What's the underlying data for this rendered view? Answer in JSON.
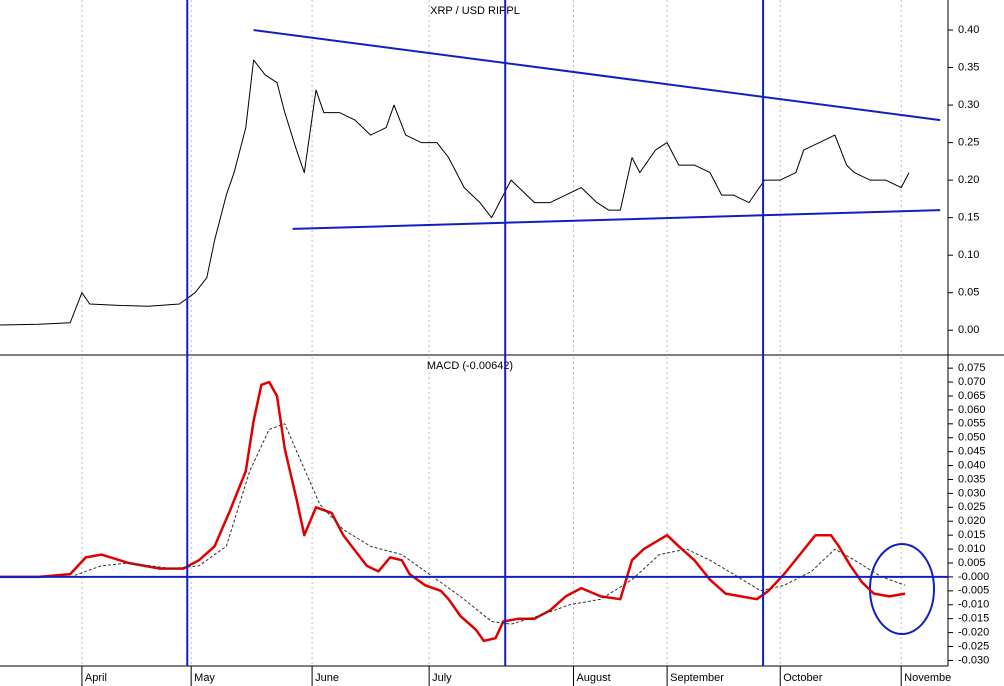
{
  "chart_data": [
    {
      "type": "line",
      "title": "XRP / USD RIPPL",
      "color": "#000000",
      "xlim": [
        0,
        243
      ],
      "ylim": [
        -0.033,
        0.44
      ],
      "yticks": [
        {
          "value": 0.4,
          "label": "0.40"
        },
        0.35,
        {
          "value": 0.3,
          "label": "0.30"
        },
        0.25,
        {
          "value": 0.2,
          "label": "0.20"
        },
        0.15,
        {
          "value": 0.1,
          "label": "0.10"
        },
        0.05,
        {
          "value": 0,
          "label": "0.00"
        }
      ],
      "series": [
        {
          "color": "#000000",
          "x": [
            0,
            10,
            18,
            21,
            23,
            31,
            38,
            46,
            50,
            53,
            55,
            58,
            60,
            63,
            65,
            68,
            71,
            73,
            76,
            78,
            81,
            83,
            87,
            91,
            95,
            99,
            101,
            104,
            108,
            112,
            115,
            119,
            123,
            126,
            128,
            131,
            133,
            137,
            141,
            145,
            149,
            153,
            156,
            159,
            162,
            164,
            168,
            171,
            174,
            178,
            182,
            185,
            188,
            192,
            196,
            200,
            204,
            206,
            210,
            214,
            217,
            219,
            223,
            227,
            231,
            233
          ],
          "values": [
            0.007,
            0.008,
            0.01,
            0.05,
            0.035,
            0.033,
            0.032,
            0.035,
            0.05,
            0.07,
            0.12,
            0.18,
            0.21,
            0.27,
            0.36,
            0.34,
            0.33,
            0.29,
            0.24,
            0.21,
            0.32,
            0.29,
            0.29,
            0.28,
            0.26,
            0.27,
            0.3,
            0.26,
            0.25,
            0.25,
            0.23,
            0.19,
            0.17,
            0.15,
            0.17,
            0.2,
            0.19,
            0.17,
            0.17,
            0.18,
            0.19,
            0.17,
            0.16,
            0.16,
            0.23,
            0.21,
            0.24,
            0.25,
            0.22,
            0.22,
            0.21,
            0.18,
            0.18,
            0.17,
            0.2,
            0.2,
            0.21,
            0.24,
            0.25,
            0.26,
            0.22,
            0.21,
            0.2,
            0.2,
            0.19,
            0.21
          ]
        }
      ],
      "trendlines": [
        {
          "color": "#1020c0",
          "x": [
            65,
            241
          ],
          "y": [
            0.4,
            0.28
          ]
        },
        {
          "color": "#1020c0",
          "x": [
            75,
            241
          ],
          "y": [
            0.135,
            0.16
          ]
        }
      ],
      "vlines": [
        48,
        129.5,
        195.6
      ],
      "vline_color": "#1020c0"
    },
    {
      "type": "line",
      "title": "MACD (-0.00642)",
      "xlim": [
        0,
        243
      ],
      "ylim": [
        -0.032,
        0.079
      ],
      "grid": true,
      "xticks": [
        {
          "value": 21,
          "label": "April"
        },
        {
          "value": 49,
          "label": "May"
        },
        {
          "value": 80,
          "label": "June"
        },
        {
          "value": 110,
          "label": "July"
        },
        {
          "value": 147,
          "label": "August"
        },
        {
          "value": 171,
          "label": "September"
        },
        {
          "value": 200,
          "label": "October"
        },
        {
          "value": 231,
          "label": "Novembe"
        }
      ],
      "yticks": [
        0.075,
        {
          "value": 0.07,
          "label": "0.070"
        },
        0.065,
        {
          "value": 0.06,
          "label": "0.060"
        },
        0.055,
        {
          "value": 0.05,
          "label": "0.050"
        },
        0.045,
        {
          "value": 0.04,
          "label": "0.040"
        },
        0.035,
        {
          "value": 0.03,
          "label": "0.030"
        },
        0.025,
        {
          "value": 0.02,
          "label": "0.020"
        },
        0.015,
        {
          "value": 0.01,
          "label": "0.010"
        },
        0.005,
        {
          "value": 0,
          "label": "-0.000"
        },
        -0.005,
        {
          "value": -0.01,
          "label": "-0.010"
        },
        -0.015,
        {
          "value": -0.02,
          "label": "-0.020"
        },
        -0.025,
        {
          "value": -0.03,
          "label": "-0.030"
        }
      ],
      "hline": 0,
      "hline_color": "#1020c0",
      "series": [
        {
          "color": "#e00000",
          "width": 2.5,
          "x": [
            0,
            10,
            18,
            22,
            26,
            33,
            41,
            47,
            51,
            55,
            59,
            63,
            65,
            67,
            69,
            71,
            73,
            76,
            78,
            81,
            85,
            88,
            94,
            97,
            100,
            103,
            105,
            109,
            113,
            115,
            118,
            122,
            124,
            127,
            129,
            133,
            137,
            141,
            145,
            149,
            154,
            159,
            162,
            165,
            171,
            174,
            178,
            182,
            186,
            190,
            194,
            197,
            201,
            205,
            209,
            213,
            215,
            218,
            221,
            224,
            228,
            232
          ],
          "values": [
            0,
            0,
            0.001,
            0.007,
            0.008,
            0.005,
            0.003,
            0.003,
            0.006,
            0.011,
            0.024,
            0.038,
            0.056,
            0.069,
            0.07,
            0.065,
            0.046,
            0.028,
            0.015,
            0.025,
            0.023,
            0.015,
            0.004,
            0.002,
            0.007,
            0.006,
            0.001,
            -0.003,
            -0.005,
            -0.008,
            -0.014,
            -0.019,
            -0.023,
            -0.022,
            -0.016,
            -0.015,
            -0.015,
            -0.012,
            -0.007,
            -0.004,
            -0.007,
            -0.008,
            0.006,
            0.01,
            0.015,
            0.011,
            0.006,
            -0.001,
            -0.006,
            -0.007,
            -0.008,
            -0.005,
            0.001,
            0.008,
            0.015,
            0.015,
            0.011,
            0.004,
            -0.002,
            -0.006,
            -0.007,
            -0.006
          ]
        },
        {
          "color": "#333333",
          "width": 1,
          "dashed": true,
          "x": [
            0,
            18,
            26,
            33,
            44,
            51,
            58,
            64,
            69,
            73,
            77,
            82,
            88,
            95,
            103,
            110,
            118,
            126,
            131,
            138,
            146,
            154,
            162,
            169,
            176,
            182,
            188,
            195,
            201,
            208,
            214,
            219,
            226,
            232
          ],
          "values": [
            0,
            0,
            0.004,
            0.005,
            0.003,
            0.004,
            0.011,
            0.038,
            0.053,
            0.055,
            0.042,
            0.026,
            0.017,
            0.011,
            0.008,
            0.001,
            -0.007,
            -0.016,
            -0.017,
            -0.014,
            -0.01,
            -0.008,
            -0.001,
            0.008,
            0.01,
            0.006,
            0.001,
            -0.005,
            -0.003,
            0.002,
            0.01,
            0.006,
            0,
            -0.003
          ]
        }
      ]
    }
  ]
}
